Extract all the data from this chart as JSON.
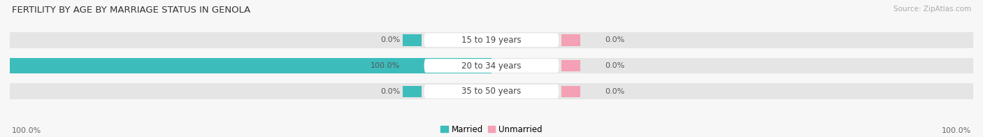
{
  "title": "FERTILITY BY AGE BY MARRIAGE STATUS IN GENOLA",
  "source": "Source: ZipAtlas.com",
  "categories": [
    "15 to 19 years",
    "20 to 34 years",
    "35 to 50 years"
  ],
  "married_values": [
    0.0,
    100.0,
    0.0
  ],
  "unmarried_values": [
    0.0,
    0.0,
    0.0
  ],
  "married_color": "#3dbcbc",
  "unmarried_color": "#f4a0b5",
  "bar_bg_color": "#e5e5e5",
  "bar_height": 0.62,
  "left_label_married": [
    "0.0%",
    "100.0%",
    "0.0%"
  ],
  "right_label_unmarried": [
    "0.0%",
    "0.0%",
    "0.0%"
  ],
  "legend_married": "Married",
  "legend_unmarried": "Unmarried",
  "bottom_left": "100.0%",
  "bottom_right": "100.0%",
  "title_fontsize": 9.5,
  "label_fontsize": 8.5,
  "source_fontsize": 7.5,
  "bg_color": "#f7f7f7",
  "max_val": 100.0
}
